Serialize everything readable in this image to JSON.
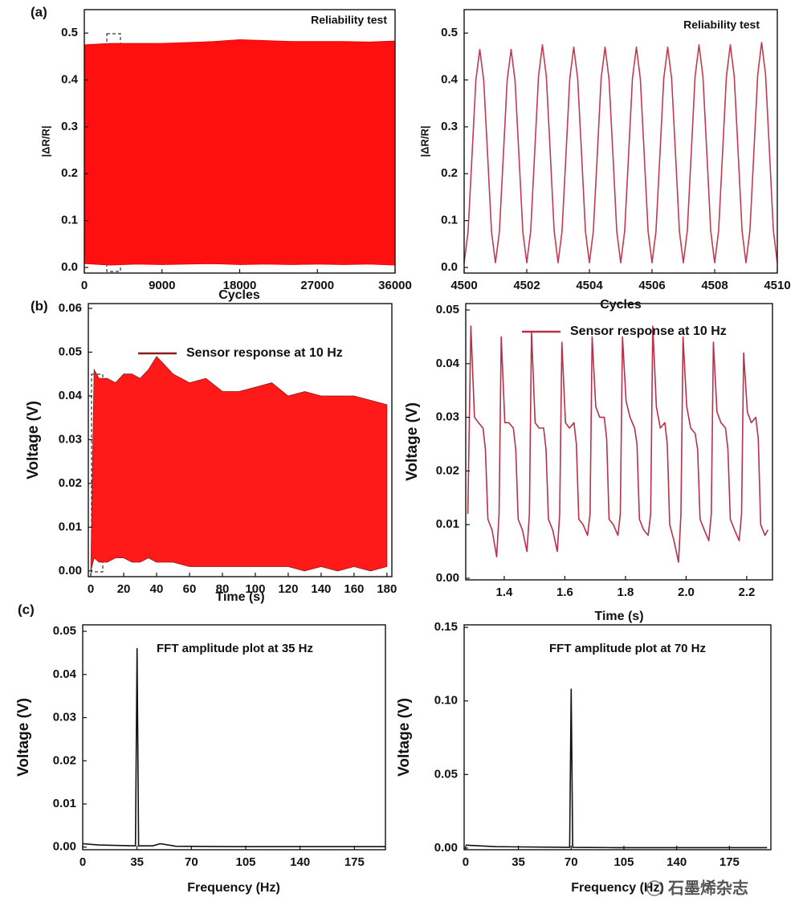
{
  "watermark": "石墨烯杂志",
  "chart_data": [
    {
      "type": "area",
      "panel_label": "(a)",
      "title": "Reliability test",
      "x_label": "Cycles",
      "y_label": "|ΔR/R|",
      "xlim": [
        0,
        36000
      ],
      "xticks": [
        0,
        9000,
        18000,
        27000,
        36000
      ],
      "ylim": [
        -0.012,
        0.55
      ],
      "yticks": [
        {
          "value": 0,
          "label": "0.0"
        },
        0.1,
        0.2,
        0.3,
        0.4,
        0.5
      ],
      "series": [
        {
          "color": "#ff1010",
          "line_color": "#e00000",
          "x": [
            0,
            3000,
            6000,
            9000,
            12000,
            15000,
            18000,
            21000,
            24000,
            27000,
            30000,
            33000,
            36000
          ],
          "upper": [
            0.475,
            0.478,
            0.478,
            0.478,
            0.48,
            0.482,
            0.486,
            0.484,
            0.482,
            0.482,
            0.482,
            0.481,
            0.483
          ],
          "lower": [
            0.008,
            0.005,
            0.007,
            0.006,
            0.007,
            0.008,
            0.006,
            0.007,
            0.006,
            0.007,
            0.006,
            0.007,
            0.005
          ]
        }
      ]
    },
    {
      "type": "line",
      "title": "Reliability test",
      "x_label": "Cycles",
      "y_label": "|ΔR/R|",
      "xlim": [
        4500,
        4510
      ],
      "xticks": [
        4500,
        4502,
        4504,
        4506,
        4508,
        4510
      ],
      "ylim": [
        -0.012,
        0.55
      ],
      "yticks": [
        {
          "value": 0,
          "label": "0.0"
        },
        0.1,
        0.2,
        0.3,
        0.4,
        0.5
      ],
      "series": [
        {
          "color": "#c23a50",
          "x": [
            4500,
            4500.125,
            4500.25,
            4500.375,
            4500.5,
            4500.625,
            4500.75,
            4500.875,
            4501,
            4501.125,
            4501.25,
            4501.375,
            4501.5,
            4501.625,
            4501.75,
            4501.875,
            4502,
            4502.125,
            4502.25,
            4502.375,
            4502.5,
            4502.625,
            4502.75,
            4502.875,
            4503,
            4503.125,
            4503.25,
            4503.375,
            4503.5,
            4503.625,
            4503.75,
            4503.875,
            4504,
            4504.125,
            4504.25,
            4504.375,
            4504.5,
            4504.625,
            4504.75,
            4504.875,
            4505,
            4505.125,
            4505.25,
            4505.375,
            4505.5,
            4505.625,
            4505.75,
            4505.875,
            4506,
            4506.125,
            4506.25,
            4506.375,
            4506.5,
            4506.625,
            4506.75,
            4506.875,
            4507,
            4507.125,
            4507.25,
            4507.375,
            4507.5,
            4507.625,
            4507.75,
            4507.875,
            4508,
            4508.125,
            4508.25,
            4508.375,
            4508.5,
            4508.625,
            4508.75,
            4508.875,
            4509,
            4509.125,
            4509.25,
            4509.375,
            4509.5,
            4509.625,
            4509.75,
            4509.875,
            4510
          ],
          "values": [
            0.01,
            0.076,
            0.238,
            0.399,
            0.465,
            0.399,
            0.238,
            0.076,
            0.01,
            0.076,
            0.238,
            0.399,
            0.465,
            0.399,
            0.238,
            0.076,
            0.01,
            0.078,
            0.243,
            0.407,
            0.475,
            0.407,
            0.243,
            0.078,
            0.01,
            0.077,
            0.24,
            0.403,
            0.47,
            0.403,
            0.24,
            0.077,
            0.01,
            0.077,
            0.24,
            0.403,
            0.47,
            0.403,
            0.24,
            0.077,
            0.01,
            0.077,
            0.24,
            0.403,
            0.47,
            0.403,
            0.24,
            0.077,
            0.01,
            0.077,
            0.24,
            0.403,
            0.47,
            0.403,
            0.24,
            0.077,
            0.01,
            0.078,
            0.243,
            0.407,
            0.475,
            0.407,
            0.243,
            0.078,
            0.01,
            0.078,
            0.243,
            0.407,
            0.475,
            0.407,
            0.243,
            0.078,
            0.01,
            0.079,
            0.245,
            0.411,
            0.48,
            0.411,
            0.245,
            0.079,
            0.01
          ]
        }
      ]
    },
    {
      "type": "area",
      "panel_label": "(b)",
      "x_label": "Time (s)",
      "y_label": "Voltage (V)",
      "xlim": [
        -1.5,
        183
      ],
      "xticks": [
        0,
        20,
        40,
        60,
        80,
        100,
        120,
        140,
        160,
        180
      ],
      "ylim": [
        -0.0013,
        0.0611
      ],
      "yticks": [
        {
          "value": 0,
          "label": "0.00"
        },
        0.01,
        0.02,
        0.03,
        0.04,
        0.05,
        0.06
      ],
      "series": [
        {
          "name": "Sensor response at 10 Hz",
          "color": "#ff1a1a",
          "line_color": "#8b1a1a",
          "x": [
            0,
            2,
            5,
            10,
            15,
            20,
            25,
            30,
            35,
            40,
            45,
            50,
            60,
            70,
            80,
            90,
            100,
            110,
            120,
            130,
            140,
            150,
            160,
            170,
            180
          ],
          "upper": [
            0.0,
            0.046,
            0.044,
            0.044,
            0.043,
            0.045,
            0.045,
            0.044,
            0.046,
            0.049,
            0.047,
            0.045,
            0.043,
            0.044,
            0.041,
            0.041,
            0.042,
            0.043,
            0.04,
            0.041,
            0.04,
            0.04,
            0.04,
            0.039,
            0.038
          ],
          "lower": [
            0.0,
            0.003,
            0.002,
            0.002,
            0.003,
            0.003,
            0.002,
            0.002,
            0.003,
            0.002,
            0.002,
            0.002,
            0.001,
            0.001,
            0.001,
            0.001,
            0.001,
            0.001,
            0.001,
            0.0,
            0.001,
            0.0,
            0.001,
            0.0,
            0.001
          ]
        }
      ]
    },
    {
      "type": "line",
      "x_label": "Time (s)",
      "y_label": "Voltage (V)",
      "xlim": [
        1.273,
        2.285
      ],
      "xticks": [
        1.4,
        1.6,
        1.8,
        {
          "value": 2,
          "label": "2.0"
        },
        2.2
      ],
      "ylim": [
        -0.0003,
        0.0512
      ],
      "yticks": [
        {
          "value": 0,
          "label": "0.00"
        },
        0.01,
        0.02,
        0.03,
        0.04,
        0.05
      ],
      "series": [
        {
          "name": "Sensor response at 10 Hz",
          "color": "#b8304a",
          "x": [
            1.28,
            1.29,
            1.302,
            1.315,
            1.33,
            1.338,
            1.346,
            1.36,
            1.375,
            1.383,
            1.39,
            1.402,
            1.415,
            1.43,
            1.438,
            1.446,
            1.46,
            1.475,
            1.483,
            1.49,
            1.502,
            1.515,
            1.53,
            1.538,
            1.546,
            1.56,
            1.575,
            1.583,
            1.59,
            1.602,
            1.615,
            1.63,
            1.638,
            1.646,
            1.66,
            1.675,
            1.683,
            1.69,
            1.702,
            1.715,
            1.73,
            1.738,
            1.746,
            1.76,
            1.775,
            1.783,
            1.79,
            1.802,
            1.815,
            1.83,
            1.838,
            1.846,
            1.86,
            1.875,
            1.883,
            1.89,
            1.902,
            1.915,
            1.93,
            1.938,
            1.946,
            1.96,
            1.975,
            1.983,
            1.99,
            2.002,
            2.015,
            2.03,
            2.038,
            2.046,
            2.06,
            2.075,
            2.083,
            2.09,
            2.102,
            2.115,
            2.13,
            2.138,
            2.146,
            2.16,
            2.175,
            2.183,
            2.19,
            2.202,
            2.215,
            2.23,
            2.238,
            2.246,
            2.26,
            2.27
          ],
          "values": [
            0.012,
            0.047,
            0.03,
            0.029,
            0.028,
            0.024,
            0.011,
            0.009,
            0.004,
            0.012,
            0.045,
            0.029,
            0.029,
            0.028,
            0.024,
            0.011,
            0.009,
            0.005,
            0.012,
            0.046,
            0.029,
            0.028,
            0.028,
            0.024,
            0.011,
            0.009,
            0.005,
            0.012,
            0.044,
            0.029,
            0.028,
            0.029,
            0.025,
            0.011,
            0.01,
            0.008,
            0.012,
            0.045,
            0.032,
            0.03,
            0.03,
            0.026,
            0.011,
            0.01,
            0.008,
            0.012,
            0.045,
            0.033,
            0.03,
            0.028,
            0.025,
            0.011,
            0.009,
            0.008,
            0.012,
            0.047,
            0.032,
            0.028,
            0.029,
            0.025,
            0.01,
            0.007,
            0.003,
            0.012,
            0.045,
            0.032,
            0.028,
            0.027,
            0.024,
            0.011,
            0.009,
            0.007,
            0.012,
            0.044,
            0.031,
            0.029,
            0.028,
            0.024,
            0.011,
            0.009,
            0.007,
            0.012,
            0.042,
            0.031,
            0.029,
            0.03,
            0.026,
            0.01,
            0.008,
            0.009
          ]
        }
      ]
    },
    {
      "type": "line",
      "panel_label": "(c)",
      "annotation": "FFT amplitude plot at 35 Hz",
      "x_label": "Frequency (Hz)",
      "y_label": "Voltage (V)",
      "xlim": [
        0,
        195
      ],
      "xticks": [
        0,
        35,
        70,
        105,
        140,
        175
      ],
      "ylim": [
        -0.0006,
        0.0515
      ],
      "yticks": [
        {
          "value": 0,
          "label": "0.00"
        },
        0.01,
        0.02,
        0.03,
        0.04,
        0.05
      ],
      "series": [
        {
          "color": "#111111",
          "x": [
            0,
            10,
            20,
            34,
            35,
            36,
            45,
            50,
            60,
            100,
            150,
            195
          ],
          "values": [
            0.0008,
            0.0005,
            0.0004,
            0.0003,
            0.046,
            0.0003,
            0.0003,
            0.0008,
            0.0002,
            0.0001,
            0.0001,
            0.0001
          ]
        }
      ]
    },
    {
      "type": "line",
      "annotation": "FFT amplitude plot at 70 Hz",
      "x_label": "Frequency (Hz)",
      "y_label": "Voltage (V)",
      "xlim": [
        -1,
        202.5
      ],
      "xticks": [
        0,
        35,
        70,
        105,
        140,
        175
      ],
      "ylim": [
        -0.0011,
        0.1517
      ],
      "yticks": [
        {
          "value": 0,
          "label": "0.00"
        },
        0.05,
        {
          "value": 0.1,
          "label": "0.10"
        },
        0.15
      ],
      "series": [
        {
          "color": "#111111",
          "x": [
            0,
            20,
            69,
            70,
            71,
            100,
            150,
            200
          ],
          "values": [
            0.002,
            0.001,
            0.0005,
            0.108,
            0.0005,
            0.0003,
            0.0003,
            0.0003
          ]
        }
      ]
    }
  ]
}
